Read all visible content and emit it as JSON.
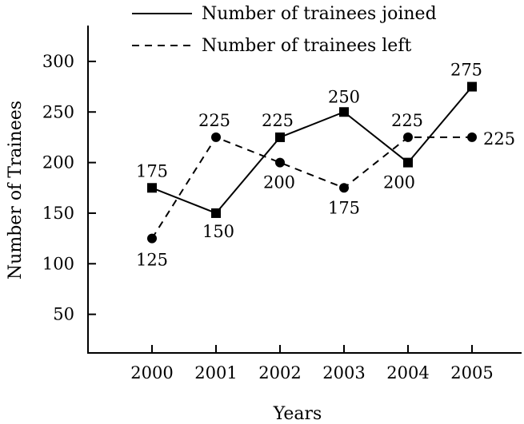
{
  "chart_data": {
    "type": "line",
    "title": "",
    "xlabel": "Years",
    "ylabel": "Number of Trainees",
    "x": [
      "2000",
      "2001",
      "2002",
      "2003",
      "2004",
      "2005"
    ],
    "ylim": [
      0,
      330
    ],
    "yticks": [
      50,
      100,
      150,
      200,
      250,
      300
    ],
    "grid": false,
    "legend_position": "top",
    "series": [
      {
        "name": "Number of trainees joined",
        "values": [
          175,
          150,
          225,
          250,
          200,
          275
        ],
        "labels": [
          "175",
          "150",
          "225",
          "250",
          "200",
          "275"
        ],
        "line_style": "solid",
        "marker": "square",
        "color": "#000000"
      },
      {
        "name": "Number of trainees left",
        "values": [
          125,
          225,
          200,
          175,
          225,
          225
        ],
        "labels": [
          "125",
          "225",
          "200",
          "175",
          "225",
          "225"
        ],
        "line_style": "dashed",
        "marker": "circle",
        "color": "#000000"
      }
    ]
  }
}
